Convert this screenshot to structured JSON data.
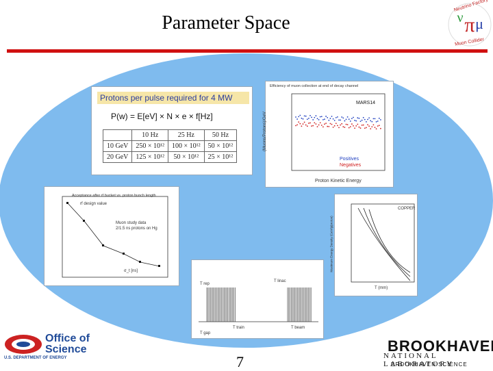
{
  "slide": {
    "title": "Parameter Space",
    "page_number": "7",
    "accent_color": "#d01010",
    "oval_color": "#7fbbee"
  },
  "logo_nf": {
    "text_top": "Neutrino Factory",
    "text_bottom": "Muon Collider"
  },
  "protons_table": {
    "heading": "Protons per pulse required for 4 MW",
    "formula": "P(w) = E[eV] × N × e × f[Hz]",
    "columns": [
      "",
      "10 Hz",
      "25 Hz",
      "50 Hz"
    ],
    "rows": [
      [
        "10 GeV",
        "250 × 10¹²",
        "100 × 10¹²",
        "50 × 10¹²"
      ],
      [
        "20 GeV",
        "125 × 10¹²",
        "50 × 10¹²",
        "25 × 10¹²"
      ]
    ]
  },
  "efficiency_plot": {
    "title": "Efficiency of muon collection at end of decay channel",
    "tag": "MARS14",
    "xlabel": "Proton Kinetic Energy",
    "ylabel": "(Muons/Protons)/GeV",
    "legend": [
      "Positives",
      "Negatives"
    ],
    "series_colors": [
      "#2040c0",
      "#d02020"
    ]
  },
  "acceptance_plot": {
    "title": "Acceptance after rf bucket vs. proton bunch length",
    "annotation_1": "rf design value",
    "annotation_2": "Muon study data",
    "annotation_3": "2/1.5 ns protons on Hg",
    "xlabel": "σ_t [ns]"
  },
  "pulse_plot": {
    "label_left": "T rep",
    "label_right": "T linac",
    "label_mid": "T train",
    "label_mid2": "T beam",
    "label_bottom": "T gap"
  },
  "copper_plot": {
    "tag": "COPPER",
    "xlabel": "T (mm)",
    "ylabel": "Maximum Energy Density (GeV/g/proton)"
  },
  "footer": {
    "doe_office": "Office of",
    "doe_science": "Science",
    "doe_dept": "U.S. DEPARTMENT OF ENERGY",
    "bnl_name": "BROOKHAVEN",
    "bnl_lab": "NATIONAL LABORATORY",
    "bnl_science": "BROOKHAVEN SCIENCE"
  }
}
